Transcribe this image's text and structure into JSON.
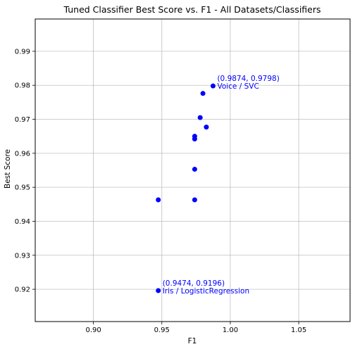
{
  "chart_data": {
    "type": "scatter",
    "title": "Tuned Classifier Best Score vs. F1 - All Datasets/Classifiers",
    "xlabel": "F1",
    "ylabel": "Best Score",
    "xlim": [
      0.8575,
      1.0875
    ],
    "ylim": [
      0.9105,
      0.9995
    ],
    "x_ticks": [
      0.9,
      0.95,
      1.0,
      1.05
    ],
    "x_tick_labels": [
      "0.90",
      "0.95",
      "1.00",
      "1.05"
    ],
    "y_ticks": [
      0.92,
      0.93,
      0.94,
      0.95,
      0.96,
      0.97,
      0.98,
      0.99
    ],
    "y_tick_labels": [
      "0.92",
      "0.93",
      "0.94",
      "0.95",
      "0.96",
      "0.97",
      "0.98",
      "0.99"
    ],
    "grid": true,
    "marker_color": "#0000ff",
    "annotation_color": "#0000ff",
    "points": [
      {
        "x": 0.9874,
        "y": 0.9798
      },
      {
        "x": 0.98,
        "y": 0.9776
      },
      {
        "x": 0.978,
        "y": 0.9705
      },
      {
        "x": 0.9825,
        "y": 0.9677
      },
      {
        "x": 0.974,
        "y": 0.965
      },
      {
        "x": 0.974,
        "y": 0.9642
      },
      {
        "x": 0.974,
        "y": 0.9553
      },
      {
        "x": 0.9474,
        "y": 0.9463
      },
      {
        "x": 0.974,
        "y": 0.9463
      },
      {
        "x": 0.9474,
        "y": 0.9196
      }
    ],
    "annotations": [
      {
        "x": 0.9874,
        "y": 0.9798,
        "coord_text": "(0.9874, 0.9798)",
        "label": "Voice / SVC"
      },
      {
        "x": 0.9474,
        "y": 0.9196,
        "coord_text": "(0.9474, 0.9196)",
        "label": "Iris / LogisticRegression"
      }
    ]
  }
}
